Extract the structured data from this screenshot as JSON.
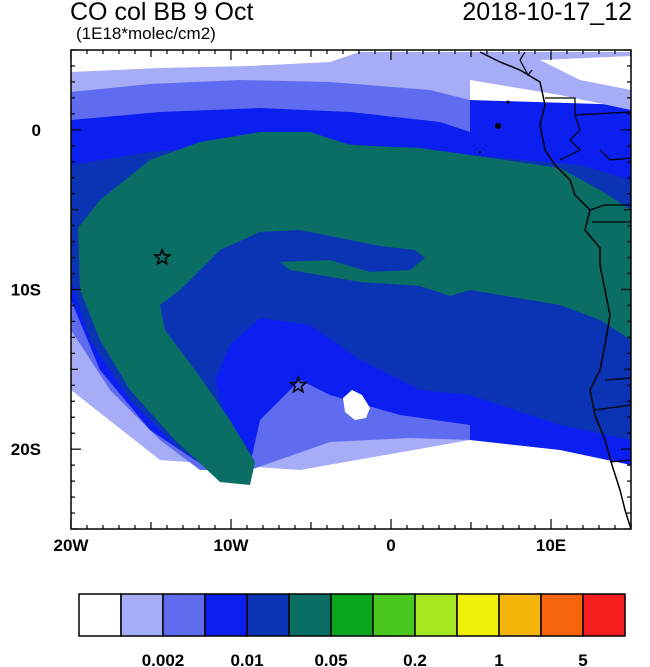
{
  "title": "CO col BB 9 Oct",
  "units": "(1E18*molec/cm2)",
  "datetime": "2018-10-17_12",
  "map": {
    "lon_range": [
      -20,
      15
    ],
    "lat_range": [
      -25,
      5
    ],
    "x_ticks": [
      {
        "value": -20,
        "label": "20W"
      },
      {
        "value": -10,
        "label": "10W"
      },
      {
        "value": 0,
        "label": "0"
      },
      {
        "value": 10,
        "label": "10E"
      }
    ],
    "y_ticks": [
      {
        "value": 0,
        "label": "0"
      },
      {
        "value": -10,
        "label": "10S"
      },
      {
        "value": -20,
        "label": "20S"
      }
    ],
    "markers": [
      {
        "name": "star-marker-1",
        "lon": -14.3,
        "lat": -8.0
      },
      {
        "name": "star-marker-2",
        "lon": -5.8,
        "lat": -16.0
      }
    ]
  },
  "colorbar": {
    "colors": [
      "#ffffff",
      "#a6acf5",
      "#5f6cf0",
      "#0a1ff0",
      "#0a34b4",
      "#0a6e64",
      "#0aa61f",
      "#4bc81f",
      "#a6e61f",
      "#f0f00a",
      "#f5b40a",
      "#f5640a",
      "#f51e1e"
    ],
    "labels": [
      {
        "after_box": 2,
        "text": "0.002"
      },
      {
        "after_box": 4,
        "text": "0.01"
      },
      {
        "after_box": 6,
        "text": "0.05"
      },
      {
        "after_box": 8,
        "text": "0.2"
      },
      {
        "after_box": 10,
        "text": "1"
      },
      {
        "after_box": 12,
        "text": "5"
      }
    ]
  }
}
